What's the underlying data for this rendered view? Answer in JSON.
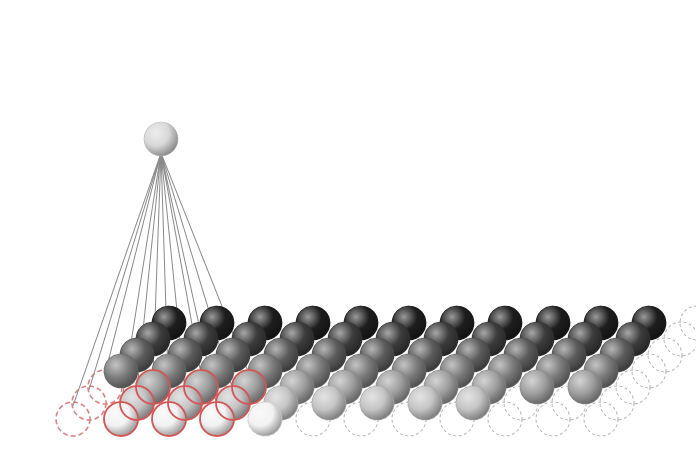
{
  "diagram": {
    "kind": "perspective grid of spheres with apex node",
    "grid": {
      "columns": 12,
      "rows": 7,
      "dashed_outer_ring": true,
      "highlighted_cells": [
        [
          0,
          0
        ],
        [
          1,
          0
        ],
        [
          2,
          0
        ],
        [
          3,
          0
        ],
        [
          0,
          1
        ],
        [
          1,
          1
        ],
        [
          2,
          1
        ],
        [
          3,
          1
        ],
        [
          0,
          2
        ],
        [
          1,
          2
        ],
        [
          2,
          2
        ],
        [
          3,
          2
        ]
      ]
    },
    "filled_region": {
      "columns_start": 1,
      "columns_end": 10,
      "rows_start": 0,
      "rows_end": 6
    },
    "apex": {
      "connected_cells": [
        [
          0,
          0
        ],
        [
          1,
          0
        ],
        [
          2,
          0
        ],
        [
          3,
          0
        ],
        [
          0,
          1
        ],
        [
          1,
          1
        ],
        [
          2,
          1
        ],
        [
          3,
          1
        ],
        [
          0,
          2
        ],
        [
          1,
          2
        ],
        [
          2,
          2
        ],
        [
          3,
          2
        ]
      ]
    },
    "colors": {
      "background": "#ffffff",
      "outline_gray": "#b4b4b4",
      "outline_red": "#e08080",
      "highlight_ring": "#d55555",
      "line_gray": "#8a8a8a",
      "sphere_front": "#f2f2f2",
      "sphere_back": "#1e1e1e"
    }
  }
}
